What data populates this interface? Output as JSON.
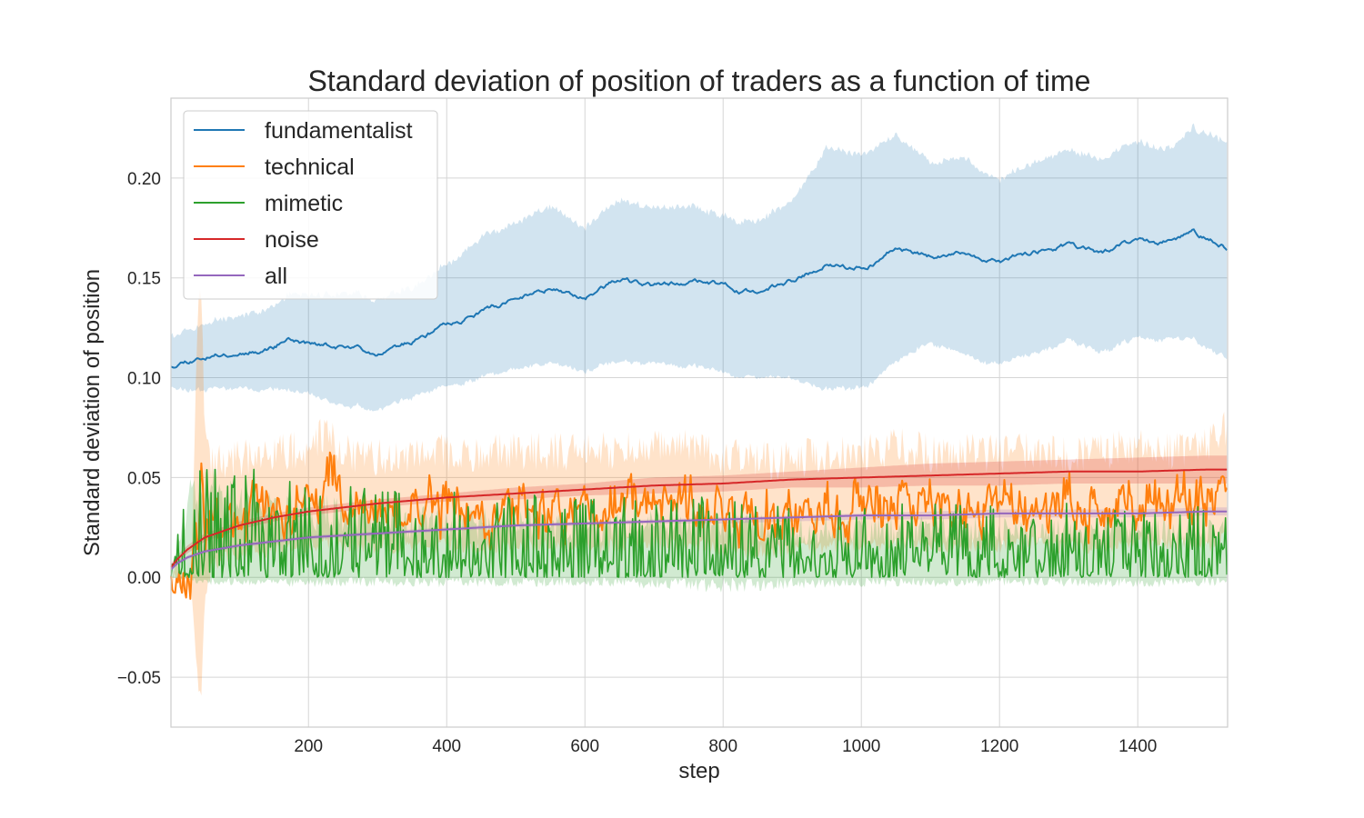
{
  "chart_data": {
    "type": "line",
    "title": "Standard deviation of position of traders as a function of time",
    "xlabel": "step",
    "ylabel": "Standard deviation of position",
    "xlim": [
      1,
      1530
    ],
    "ylim": [
      -0.075,
      0.24
    ],
    "xticks": [
      200,
      400,
      600,
      800,
      1000,
      1200,
      1400
    ],
    "yticks": [
      -0.05,
      0.0,
      0.05,
      0.1,
      0.15,
      0.2
    ],
    "xtick_labels": [
      "200",
      "400",
      "600",
      "800",
      "1000",
      "1200",
      "1400"
    ],
    "ytick_labels": [
      "−0.05",
      "0.00",
      "0.05",
      "0.10",
      "0.15",
      "0.20"
    ],
    "grid": true,
    "legend_position": "top-left",
    "series": [
      {
        "name": "fundamentalist",
        "color": "#1f77b4",
        "band": true,
        "x": [
          1,
          20,
          50,
          100,
          150,
          170,
          200,
          250,
          300,
          350,
          400,
          450,
          500,
          550,
          600,
          650,
          700,
          750,
          800,
          850,
          900,
          950,
          1000,
          1050,
          1100,
          1150,
          1200,
          1250,
          1300,
          1350,
          1400,
          1450,
          1480,
          1530
        ],
        "mean": [
          0.106,
          0.109,
          0.111,
          0.113,
          0.116,
          0.12,
          0.117,
          0.115,
          0.113,
          0.118,
          0.126,
          0.133,
          0.139,
          0.145,
          0.141,
          0.149,
          0.145,
          0.149,
          0.146,
          0.142,
          0.148,
          0.157,
          0.155,
          0.165,
          0.161,
          0.162,
          0.157,
          0.163,
          0.166,
          0.162,
          0.169,
          0.168,
          0.172,
          0.165
        ],
        "lower": [
          0.096,
          0.095,
          0.095,
          0.096,
          0.095,
          0.094,
          0.092,
          0.085,
          0.085,
          0.09,
          0.095,
          0.1,
          0.104,
          0.108,
          0.104,
          0.108,
          0.106,
          0.107,
          0.102,
          0.1,
          0.099,
          0.095,
          0.095,
          0.108,
          0.118,
          0.111,
          0.106,
          0.112,
          0.118,
          0.112,
          0.12,
          0.119,
          0.118,
          0.11
        ],
        "upper": [
          0.122,
          0.124,
          0.128,
          0.132,
          0.136,
          0.142,
          0.141,
          0.142,
          0.14,
          0.145,
          0.156,
          0.17,
          0.177,
          0.186,
          0.176,
          0.189,
          0.184,
          0.187,
          0.18,
          0.178,
          0.188,
          0.216,
          0.212,
          0.222,
          0.208,
          0.21,
          0.198,
          0.208,
          0.213,
          0.209,
          0.218,
          0.214,
          0.224,
          0.219
        ]
      },
      {
        "name": "technical",
        "color": "#ff7f0e",
        "band": true,
        "noise": 0.009,
        "seed": 7,
        "x": [
          1,
          30,
          40,
          45,
          50,
          60,
          80,
          100,
          150,
          200,
          230,
          250,
          300,
          350,
          400,
          450,
          500,
          550,
          600,
          650,
          700,
          750,
          800,
          850,
          900,
          950,
          1000,
          1050,
          1100,
          1150,
          1200,
          1250,
          1300,
          1350,
          1400,
          1450,
          1500,
          1530
        ],
        "mean": [
          0.0,
          0.0,
          0.02,
          0.06,
          0.02,
          0.028,
          0.032,
          0.032,
          0.035,
          0.038,
          0.05,
          0.035,
          0.033,
          0.034,
          0.035,
          0.032,
          0.036,
          0.035,
          0.034,
          0.036,
          0.037,
          0.038,
          0.032,
          0.03,
          0.031,
          0.033,
          0.034,
          0.038,
          0.034,
          0.035,
          0.034,
          0.036,
          0.033,
          0.035,
          0.036,
          0.035,
          0.034,
          0.045
        ],
        "lower": [
          0.0,
          0.0,
          -0.055,
          -0.058,
          -0.01,
          0.005,
          0.01,
          0.012,
          0.014,
          0.015,
          0.018,
          0.016,
          0.015,
          0.016,
          0.016,
          0.015,
          0.016,
          0.016,
          0.015,
          0.016,
          0.017,
          0.017,
          0.014,
          0.013,
          0.014,
          0.015,
          0.016,
          0.017,
          0.016,
          0.016,
          0.016,
          0.017,
          0.015,
          0.016,
          0.017,
          0.016,
          0.016,
          0.02
        ],
        "upper": [
          0.0,
          0.0,
          0.13,
          0.145,
          0.07,
          0.055,
          0.058,
          0.06,
          0.062,
          0.065,
          0.075,
          0.062,
          0.06,
          0.062,
          0.063,
          0.06,
          0.064,
          0.063,
          0.062,
          0.064,
          0.066,
          0.067,
          0.06,
          0.058,
          0.059,
          0.061,
          0.062,
          0.066,
          0.062,
          0.063,
          0.062,
          0.064,
          0.061,
          0.063,
          0.065,
          0.064,
          0.065,
          0.075
        ]
      },
      {
        "name": "mimetic",
        "color": "#2ca02c",
        "band": true,
        "spiky": true,
        "seed": 3,
        "x": [
          1,
          30,
          60,
          100,
          200,
          300,
          400,
          500,
          600,
          700,
          800,
          900,
          1000,
          1100,
          1200,
          1300,
          1400,
          1500,
          1530
        ],
        "mean": [
          0.0,
          0.015,
          0.018,
          0.016,
          0.014,
          0.012,
          0.011,
          0.011,
          0.01,
          0.01,
          0.01,
          0.009,
          0.009,
          0.009,
          0.009,
          0.009,
          0.009,
          0.009,
          0.009
        ],
        "lower": [
          0.0,
          -0.003,
          -0.004,
          -0.004,
          -0.005,
          -0.005,
          -0.005,
          -0.005,
          -0.005,
          -0.006,
          -0.008,
          -0.006,
          -0.005,
          -0.005,
          -0.005,
          -0.005,
          -0.005,
          -0.005,
          -0.005
        ],
        "upper": [
          0.0,
          0.045,
          0.048,
          0.04,
          0.036,
          0.032,
          0.03,
          0.03,
          0.028,
          0.028,
          0.028,
          0.026,
          0.026,
          0.026,
          0.025,
          0.025,
          0.025,
          0.025,
          0.025
        ]
      },
      {
        "name": "noise",
        "color": "#d62728",
        "band": true,
        "x": [
          1,
          10,
          25,
          50,
          100,
          150,
          200,
          300,
          400,
          500,
          600,
          700,
          800,
          900,
          1000,
          1100,
          1200,
          1300,
          1400,
          1500,
          1530
        ],
        "mean": [
          0.005,
          0.009,
          0.014,
          0.02,
          0.026,
          0.03,
          0.033,
          0.037,
          0.04,
          0.042,
          0.044,
          0.046,
          0.047,
          0.049,
          0.05,
          0.051,
          0.052,
          0.053,
          0.053,
          0.054,
          0.054
        ],
        "lower": [
          0.003,
          0.007,
          0.012,
          0.018,
          0.024,
          0.028,
          0.031,
          0.035,
          0.038,
          0.039,
          0.041,
          0.042,
          0.043,
          0.045,
          0.045,
          0.046,
          0.046,
          0.047,
          0.047,
          0.047,
          0.047
        ],
        "upper": [
          0.007,
          0.011,
          0.016,
          0.022,
          0.028,
          0.032,
          0.035,
          0.039,
          0.042,
          0.045,
          0.047,
          0.05,
          0.051,
          0.053,
          0.055,
          0.057,
          0.058,
          0.059,
          0.06,
          0.061,
          0.061
        ]
      },
      {
        "name": "all",
        "color": "#9467bd",
        "band": true,
        "x": [
          1,
          10,
          25,
          50,
          100,
          150,
          200,
          300,
          400,
          500,
          600,
          700,
          800,
          900,
          1000,
          1100,
          1200,
          1300,
          1400,
          1500,
          1530
        ],
        "mean": [
          0.004,
          0.007,
          0.01,
          0.013,
          0.016,
          0.018,
          0.02,
          0.022,
          0.024,
          0.026,
          0.027,
          0.028,
          0.029,
          0.03,
          0.031,
          0.031,
          0.032,
          0.032,
          0.032,
          0.033,
          0.033
        ],
        "lower": [
          0.003,
          0.006,
          0.009,
          0.012,
          0.015,
          0.017,
          0.019,
          0.021,
          0.023,
          0.025,
          0.026,
          0.027,
          0.027,
          0.028,
          0.029,
          0.029,
          0.03,
          0.03,
          0.03,
          0.031,
          0.031
        ],
        "upper": [
          0.005,
          0.008,
          0.011,
          0.014,
          0.017,
          0.019,
          0.021,
          0.023,
          0.025,
          0.027,
          0.028,
          0.029,
          0.03,
          0.031,
          0.032,
          0.033,
          0.034,
          0.034,
          0.034,
          0.035,
          0.035
        ]
      }
    ]
  }
}
